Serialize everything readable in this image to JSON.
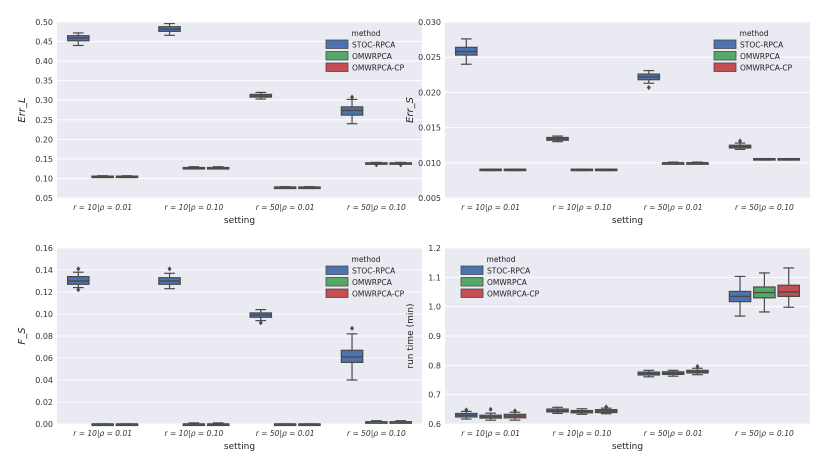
{
  "chart_data": [
    {
      "type": "box",
      "xlabel": "setting",
      "ylabel": "Err_L",
      "ylim": [
        0.05,
        0.5
      ],
      "yticks": [
        "0.05",
        "0.10",
        "0.15",
        "0.20",
        "0.25",
        "0.30",
        "0.35",
        "0.40",
        "0.45",
        "0.50"
      ],
      "categories": [
        "r = 10|ρ = 0.01",
        "r = 10|ρ = 0.10",
        "r = 50|ρ = 0.01",
        "r = 50|ρ = 0.10"
      ],
      "legend": {
        "title": "method",
        "position": "top-right"
      },
      "series": [
        {
          "name": "STOC-RPCA",
          "color": "#4c72b0",
          "boxes": [
            {
              "min": 0.44,
              "q1": 0.452,
              "median": 0.459,
              "q3": 0.465,
              "max": 0.472,
              "outliers": []
            },
            {
              "min": 0.466,
              "q1": 0.476,
              "median": 0.482,
              "q3": 0.488,
              "max": 0.496,
              "outliers": []
            },
            {
              "min": 0.303,
              "q1": 0.308,
              "median": 0.311,
              "q3": 0.315,
              "max": 0.32,
              "outliers": []
            },
            {
              "min": 0.24,
              "q1": 0.262,
              "median": 0.274,
              "q3": 0.283,
              "max": 0.302,
              "outliers": [
                0.308
              ]
            }
          ]
        },
        {
          "name": "OMWRPCA",
          "color": "#55a868",
          "boxes": [
            {
              "min": 0.103,
              "q1": 0.104,
              "median": 0.105,
              "q3": 0.106,
              "max": 0.107,
              "outliers": []
            },
            {
              "min": 0.125,
              "q1": 0.126,
              "median": 0.127,
              "q3": 0.128,
              "max": 0.13,
              "outliers": []
            },
            {
              "min": 0.077,
              "q1": 0.077,
              "median": 0.078,
              "q3": 0.078,
              "max": 0.079,
              "outliers": []
            },
            {
              "min": 0.137,
              "q1": 0.138,
              "median": 0.139,
              "q3": 0.14,
              "max": 0.141,
              "outliers": [
                0.135
              ]
            }
          ]
        },
        {
          "name": "OMWRPCA-CP",
          "color": "#c44e52",
          "boxes": [
            {
              "min": 0.103,
              "q1": 0.104,
              "median": 0.105,
              "q3": 0.106,
              "max": 0.107,
              "outliers": []
            },
            {
              "min": 0.125,
              "q1": 0.126,
              "median": 0.127,
              "q3": 0.128,
              "max": 0.13,
              "outliers": []
            },
            {
              "min": 0.077,
              "q1": 0.077,
              "median": 0.078,
              "q3": 0.078,
              "max": 0.079,
              "outliers": []
            },
            {
              "min": 0.137,
              "q1": 0.138,
              "median": 0.139,
              "q3": 0.14,
              "max": 0.141,
              "outliers": [
                0.135
              ]
            }
          ]
        }
      ]
    },
    {
      "type": "box",
      "xlabel": "setting",
      "ylabel": "Err_S",
      "ylim": [
        0.005,
        0.03
      ],
      "yticks": [
        "0.005",
        "0.010",
        "0.015",
        "0.020",
        "0.025",
        "0.030"
      ],
      "categories": [
        "r = 10|ρ = 0.01",
        "r = 10|ρ = 0.10",
        "r = 50|ρ = 0.01",
        "r = 50|ρ = 0.10"
      ],
      "legend": {
        "title": "method",
        "position": "top-right"
      },
      "series": [
        {
          "name": "STOC-RPCA",
          "color": "#4c72b0",
          "boxes": [
            {
              "min": 0.024,
              "q1": 0.0253,
              "median": 0.0258,
              "q3": 0.0264,
              "max": 0.0276,
              "outliers": []
            },
            {
              "min": 0.013,
              "q1": 0.0132,
              "median": 0.0134,
              "q3": 0.0136,
              "max": 0.0138,
              "outliers": []
            },
            {
              "min": 0.0213,
              "q1": 0.0218,
              "median": 0.0222,
              "q3": 0.0226,
              "max": 0.0231,
              "outliers": [
                0.0207
              ]
            },
            {
              "min": 0.0119,
              "q1": 0.0121,
              "median": 0.0123,
              "q3": 0.0125,
              "max": 0.0128,
              "outliers": [
                0.0131
              ]
            }
          ]
        },
        {
          "name": "OMWRPCA",
          "color": "#55a868",
          "boxes": [
            {
              "min": 0.0089,
              "q1": 0.009,
              "median": 0.009,
              "q3": 0.0091,
              "max": 0.0091,
              "outliers": []
            },
            {
              "min": 0.0089,
              "q1": 0.009,
              "median": 0.009,
              "q3": 0.0091,
              "max": 0.0091,
              "outliers": []
            },
            {
              "min": 0.0099,
              "q1": 0.01,
              "median": 0.01,
              "q3": 0.01,
              "max": 0.0101,
              "outliers": []
            },
            {
              "min": 0.0104,
              "q1": 0.0105,
              "median": 0.0105,
              "q3": 0.0106,
              "max": 0.0106,
              "outliers": []
            }
          ]
        },
        {
          "name": "OMWRPCA-CP",
          "color": "#c44e52",
          "boxes": [
            {
              "min": 0.0089,
              "q1": 0.009,
              "median": 0.009,
              "q3": 0.0091,
              "max": 0.0091,
              "outliers": []
            },
            {
              "min": 0.0089,
              "q1": 0.009,
              "median": 0.009,
              "q3": 0.0091,
              "max": 0.0091,
              "outliers": []
            },
            {
              "min": 0.0099,
              "q1": 0.01,
              "median": 0.01,
              "q3": 0.01,
              "max": 0.0101,
              "outliers": []
            },
            {
              "min": 0.0104,
              "q1": 0.0105,
              "median": 0.0105,
              "q3": 0.0106,
              "max": 0.0106,
              "outliers": []
            }
          ]
        }
      ]
    },
    {
      "type": "box",
      "xlabel": "setting",
      "ylabel": "F_S",
      "ylim": [
        0.0,
        0.16
      ],
      "yticks": [
        "0.00",
        "0.02",
        "0.04",
        "0.06",
        "0.08",
        "0.10",
        "0.12",
        "0.14",
        "0.16"
      ],
      "categories": [
        "r = 10|ρ = 0.01",
        "r = 10|ρ = 0.10",
        "r = 50|ρ = 0.01",
        "r = 50|ρ = 0.10"
      ],
      "legend": {
        "title": "method",
        "position": "top-right"
      },
      "series": [
        {
          "name": "STOC-RPCA",
          "color": "#4c72b0",
          "boxes": [
            {
              "min": 0.124,
              "q1": 0.127,
              "median": 0.13,
              "q3": 0.134,
              "max": 0.138,
              "outliers": [
                0.141,
                0.122
              ]
            },
            {
              "min": 0.123,
              "q1": 0.127,
              "median": 0.13,
              "q3": 0.133,
              "max": 0.137,
              "outliers": [
                0.141
              ]
            },
            {
              "min": 0.094,
              "q1": 0.097,
              "median": 0.099,
              "q3": 0.101,
              "max": 0.104,
              "outliers": [
                0.092
              ]
            },
            {
              "min": 0.04,
              "q1": 0.056,
              "median": 0.061,
              "q3": 0.067,
              "max": 0.082,
              "outliers": [
                0.087
              ]
            }
          ]
        },
        {
          "name": "OMWRPCA",
          "color": "#55a868",
          "boxes": [
            {
              "min": 0.0,
              "q1": 0.0,
              "median": 0.0,
              "q3": 0.0,
              "max": 0.0,
              "outliers": []
            },
            {
              "min": 0.0,
              "q1": 0.0,
              "median": 0.0,
              "q3": 0.0,
              "max": 0.001,
              "outliers": []
            },
            {
              "min": 0.0,
              "q1": 0.0,
              "median": 0.0,
              "q3": 0.0,
              "max": 0.0,
              "outliers": []
            },
            {
              "min": 0.002,
              "q1": 0.002,
              "median": 0.002,
              "q3": 0.002,
              "max": 0.003,
              "outliers": []
            }
          ]
        },
        {
          "name": "OMWRPCA-CP",
          "color": "#c44e52",
          "boxes": [
            {
              "min": 0.0,
              "q1": 0.0,
              "median": 0.0,
              "q3": 0.0,
              "max": 0.0,
              "outliers": []
            },
            {
              "min": 0.0,
              "q1": 0.0,
              "median": 0.0,
              "q3": 0.0,
              "max": 0.001,
              "outliers": []
            },
            {
              "min": 0.0,
              "q1": 0.0,
              "median": 0.0,
              "q3": 0.0,
              "max": 0.0,
              "outliers": []
            },
            {
              "min": 0.002,
              "q1": 0.002,
              "median": 0.002,
              "q3": 0.002,
              "max": 0.003,
              "outliers": []
            }
          ]
        }
      ]
    },
    {
      "type": "box",
      "xlabel": "setting",
      "ylabel": "run time (min)",
      "ylim": [
        0.6,
        1.2
      ],
      "yticks": [
        "0.6",
        "0.7",
        "0.8",
        "0.9",
        "1.0",
        "1.1",
        "1.2"
      ],
      "categories": [
        "r = 10|ρ = 0.01",
        "r = 10|ρ = 0.10",
        "r = 50|ρ = 0.01",
        "r = 50|ρ = 0.10"
      ],
      "legend": {
        "title": "method",
        "position": "top-left"
      },
      "series": [
        {
          "name": "STOC-RPCA",
          "color": "#4c72b0",
          "boxes": [
            {
              "min": 0.617,
              "q1": 0.624,
              "median": 0.63,
              "q3": 0.636,
              "max": 0.643,
              "outliers": [
                0.648
              ]
            },
            {
              "min": 0.636,
              "q1": 0.641,
              "median": 0.645,
              "q3": 0.651,
              "max": 0.657,
              "outliers": []
            },
            {
              "min": 0.761,
              "q1": 0.767,
              "median": 0.772,
              "q3": 0.777,
              "max": 0.783,
              "outliers": []
            },
            {
              "min": 0.968,
              "q1": 1.017,
              "median": 1.035,
              "q3": 1.052,
              "max": 1.103,
              "outliers": []
            }
          ]
        },
        {
          "name": "OMWRPCA",
          "color": "#55a868",
          "boxes": [
            {
              "min": 0.613,
              "q1": 0.62,
              "median": 0.625,
              "q3": 0.63,
              "max": 0.637,
              "outliers": [
                0.65
              ]
            },
            {
              "min": 0.633,
              "q1": 0.638,
              "median": 0.642,
              "q3": 0.646,
              "max": 0.652,
              "outliers": []
            },
            {
              "min": 0.763,
              "q1": 0.769,
              "median": 0.773,
              "q3": 0.778,
              "max": 0.783,
              "outliers": []
            },
            {
              "min": 0.982,
              "q1": 1.03,
              "median": 1.048,
              "q3": 1.067,
              "max": 1.115,
              "outliers": []
            }
          ]
        },
        {
          "name": "OMWRPCA-CP",
          "color": "#c44e52",
          "boxes": [
            {
              "min": 0.613,
              "q1": 0.621,
              "median": 0.627,
              "q3": 0.633,
              "max": 0.64,
              "outliers": [
                0.645
              ]
            },
            {
              "min": 0.635,
              "q1": 0.639,
              "median": 0.644,
              "q3": 0.649,
              "max": 0.654,
              "outliers": [
                0.658
              ]
            },
            {
              "min": 0.768,
              "q1": 0.774,
              "median": 0.778,
              "q3": 0.783,
              "max": 0.79,
              "outliers": [
                0.796
              ]
            },
            {
              "min": 0.998,
              "q1": 1.035,
              "median": 1.05,
              "q3": 1.073,
              "max": 1.132,
              "outliers": []
            }
          ]
        }
      ]
    }
  ]
}
